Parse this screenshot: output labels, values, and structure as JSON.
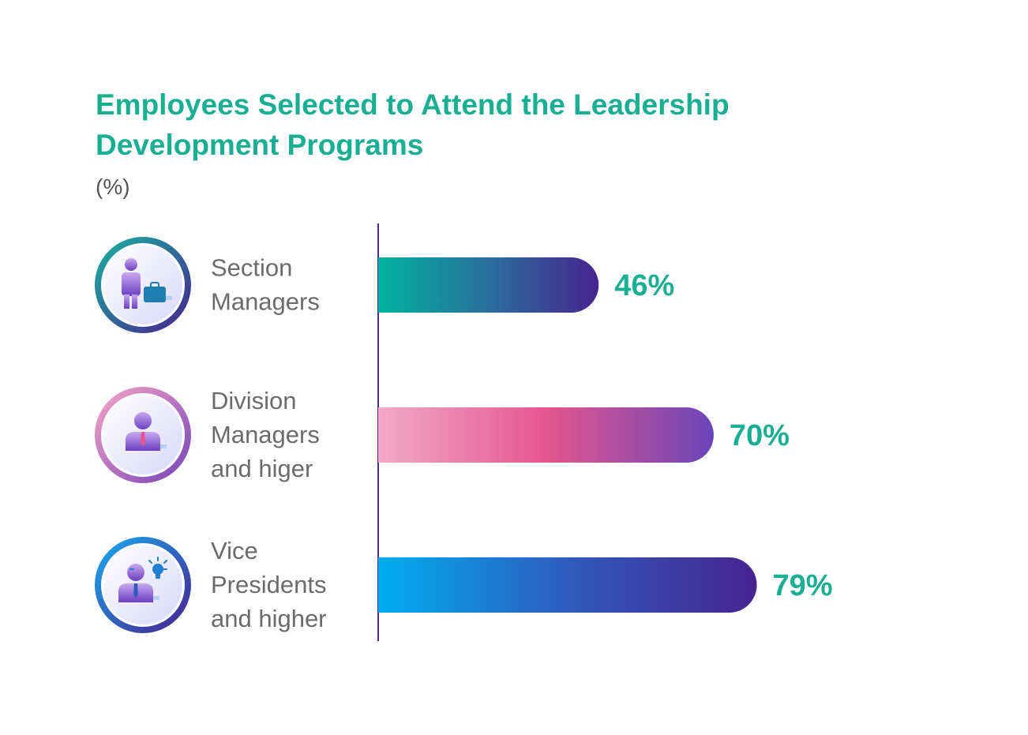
{
  "chart_data": {
    "type": "bar",
    "orientation": "horizontal",
    "title": "Employees Selected to Attend the Leadership Development Programs",
    "title_lines": [
      "Employees Selected to Attend the Leadership",
      "Development Programs"
    ],
    "subtitle": "(%)",
    "xlim": [
      0,
      100
    ],
    "grid": false,
    "categories": [
      {
        "label_lines": [
          "Section",
          "Managers"
        ],
        "icon": "manager-briefcase-icon",
        "value": 46,
        "value_label": "46%",
        "gradient": [
          "#00B39E",
          "#2A6F9E",
          "#47248F"
        ],
        "ring": [
          "#1AB0A0",
          "#47248F"
        ]
      },
      {
        "label_lines": [
          "Division",
          "Managers",
          "and higer"
        ],
        "icon": "manager-tie-icon",
        "value": 70,
        "value_label": "70%",
        "gradient": [
          "#F2AAC6",
          "#E5568E",
          "#6A45B8"
        ],
        "ring": [
          "#F3A3C4",
          "#7A46B8"
        ]
      },
      {
        "label_lines": [
          "Vice",
          "Presidents",
          "and higher"
        ],
        "icon": "executive-lightbulb-icon",
        "value": 79,
        "value_label": "79%",
        "gradient": [
          "#00AEEF",
          "#2F5BBF",
          "#47248F"
        ],
        "ring": [
          "#1AA6EE",
          "#47248F"
        ]
      }
    ],
    "colors": {
      "title": "#1AAF93",
      "value_label": "#1AAF93",
      "category_label": "#6B6B6B",
      "subtitle": "#555555",
      "axis": "#4B2A8C"
    }
  }
}
